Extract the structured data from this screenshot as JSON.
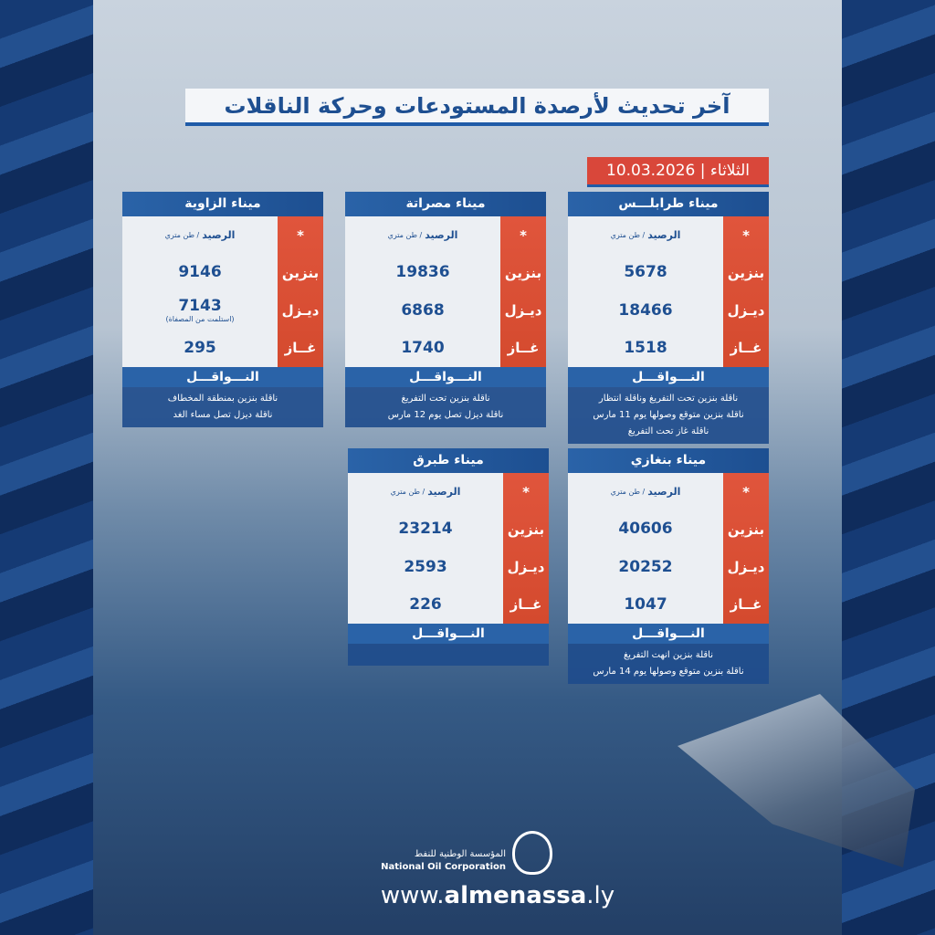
{
  "title": "آخر تحديث لأرصدة المستودعات وحركة الناقلات",
  "date": "الثلاثاء | 10.03.2026",
  "labels": {
    "asterisk": "*",
    "balance": "الرصيد",
    "unit": "/ طن متري",
    "gasoline": "بنزين",
    "diesel": "ديـزل",
    "gas": "غــاز",
    "tankers": "النـــواقـــل"
  },
  "cards": [
    {
      "name": "ميناء طرابلـــس",
      "gasoline": "5678",
      "diesel": "18466",
      "diesel_note": "",
      "gas": "1518",
      "notes": [
        "ناقلة بنزين تحت التفريغ وناقلة انتظار",
        "ناقلة بنزين متوقع وصولها يوم  11 مارس",
        "ناقلة غاز  تحت التفريغ"
      ]
    },
    {
      "name": "ميناء مصراتة",
      "gasoline": "19836",
      "diesel": "6868",
      "diesel_note": "",
      "gas": "1740",
      "notes": [
        "ناقلة بنزين تحت التفريغ",
        "ناقلة ديزل تصل يوم 12 مارس"
      ]
    },
    {
      "name": "ميناء الزاوية",
      "gasoline": "9146",
      "diesel": "7143",
      "diesel_note": "(استلمت من المصفاة)",
      "gas": "295",
      "notes": [
        "ناقلة بنزين بمنطقة المخطاف",
        "ناقلة ديزل تصل مساء الغد"
      ]
    },
    {
      "name": "ميناء بنغازي",
      "gasoline": "40606",
      "diesel": "20252",
      "diesel_note": "",
      "gas": "1047",
      "notes": [
        "ناقلة بنزين انهت التفريغ",
        "ناقلة بنزين متوقع وصولها يوم 14 مارس"
      ]
    },
    {
      "name": "ميناء طبرق",
      "gasoline": "23214",
      "diesel": "2593",
      "diesel_note": "",
      "gas": "226",
      "notes": []
    }
  ],
  "footer": {
    "org_ar": "المؤسسة الوطنية للنفط",
    "org_en": "National Oil Corporation",
    "url_prefix": "www.",
    "url_main": "almenassa",
    "url_suffix": ".ly"
  }
}
